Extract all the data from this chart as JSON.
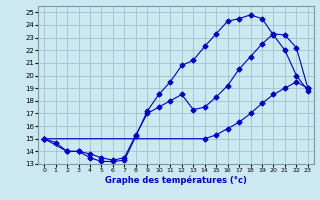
{
  "xlabel": "Graphe des températures (°c)",
  "bg_color": "#cce8f0",
  "line_color": "#0000cc",
  "grid_color": "#99bbcc",
  "xlim": [
    -0.5,
    23.5
  ],
  "ylim": [
    13,
    25.5
  ],
  "xticks": [
    0,
    1,
    2,
    3,
    4,
    5,
    6,
    7,
    8,
    9,
    10,
    11,
    12,
    13,
    14,
    15,
    16,
    17,
    18,
    19,
    20,
    21,
    22,
    23
  ],
  "yticks": [
    13,
    14,
    15,
    16,
    17,
    18,
    19,
    20,
    21,
    22,
    23,
    24,
    25
  ],
  "line1_x": [
    0,
    1,
    2,
    3,
    4,
    5,
    6,
    7,
    8,
    9,
    10,
    11,
    12,
    13,
    14,
    15,
    16,
    17,
    18,
    19,
    20,
    21,
    22,
    23
  ],
  "line1_y": [
    15.0,
    14.7,
    14.0,
    14.0,
    13.5,
    13.2,
    13.2,
    13.3,
    15.2,
    17.2,
    18.5,
    19.5,
    20.8,
    21.2,
    22.3,
    23.3,
    24.3,
    24.5,
    24.8,
    24.5,
    23.2,
    22.0,
    20.0,
    18.8
  ],
  "line2_x": [
    0,
    2,
    3,
    4,
    5,
    6,
    7,
    8,
    9,
    10,
    11,
    12,
    13,
    14,
    15,
    16,
    17,
    18,
    19,
    20,
    21,
    22,
    23
  ],
  "line2_y": [
    15.0,
    14.0,
    14.0,
    13.8,
    13.5,
    13.3,
    13.5,
    15.3,
    17.0,
    17.5,
    18.0,
    18.5,
    17.3,
    17.5,
    18.3,
    19.2,
    20.5,
    21.5,
    22.5,
    23.3,
    23.2,
    22.2,
    19.0
  ],
  "line3_x": [
    0,
    14,
    15,
    16,
    17,
    18,
    19,
    20,
    21,
    22,
    23
  ],
  "line3_y": [
    15.0,
    15.0,
    15.3,
    15.8,
    16.3,
    17.0,
    17.8,
    18.5,
    19.0,
    19.5,
    19.0
  ]
}
